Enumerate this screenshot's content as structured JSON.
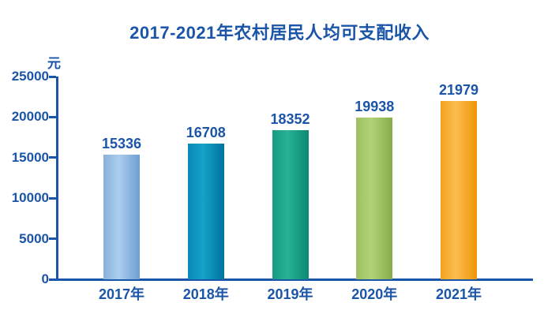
{
  "page": {
    "background_color": "#ffffff",
    "text_color": "#1b55a8",
    "axis_color": "#1b55a8"
  },
  "chart_data": {
    "type": "bar",
    "title": "2017-2021年农村居民人均可支配收入",
    "ylabel": "元",
    "xlabel": "",
    "categories": [
      "2017年",
      "2018年",
      "2019年",
      "2020年",
      "2021年"
    ],
    "values": [
      15336,
      16708,
      18352,
      19938,
      21979
    ],
    "value_labels": [
      "15336",
      "16708",
      "18352",
      "19938",
      "21979"
    ],
    "ylim": [
      0,
      25000
    ],
    "yticks": [
      0,
      5000,
      10000,
      15000,
      20000,
      25000
    ],
    "grid": "off",
    "legend": "none",
    "bar_gradients": [
      [
        "#88b0dc",
        "#abceee",
        "#6f9ed2"
      ],
      [
        "#0a8ab4",
        "#16a2c8",
        "#00729d"
      ],
      [
        "#179a80",
        "#28b296",
        "#0c8970"
      ],
      [
        "#9dc061",
        "#b1d376",
        "#87ac4b"
      ],
      [
        "#f3a41d",
        "#fcbd50",
        "#ed9506"
      ]
    ]
  }
}
